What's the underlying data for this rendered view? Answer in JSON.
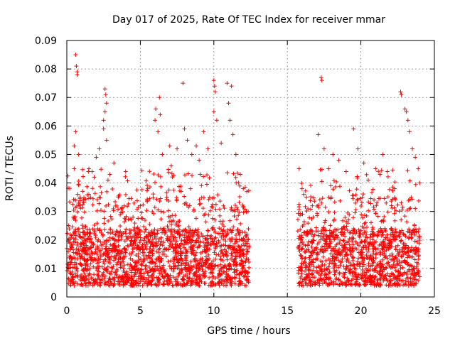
{
  "chart_data": {
    "type": "scatter",
    "title": "Day 017 of 2025, Rate Of TEC Index for receiver mmar",
    "xlabel": "GPS time / hours",
    "ylabel": "ROTI / TECUs",
    "xlim": [
      0,
      25
    ],
    "ylim": [
      0,
      0.09
    ],
    "xticks": [
      0,
      5,
      10,
      15,
      20,
      25
    ],
    "yticks": [
      0,
      0.01,
      0.02,
      0.03,
      0.04,
      0.05,
      0.06,
      0.07,
      0.08,
      0.09
    ],
    "xtick_labels": [
      "0",
      "5",
      "10",
      "15",
      "20",
      "25"
    ],
    "ytick_labels": [
      "0",
      "0.01",
      "0.02",
      "0.03",
      "0.04",
      "0.05",
      "0.06",
      "0.07",
      "0.08",
      "0.09"
    ],
    "grid": true,
    "marker": "+",
    "color": "#ff0000",
    "data_gap_hours": [
      12.4,
      15.7
    ],
    "series": [
      {
        "name": "ROTI",
        "points": [
          [
            0.3,
            0.012
          ],
          [
            0.5,
            0.053
          ],
          [
            0.6,
            0.085
          ],
          [
            0.65,
            0.081
          ],
          [
            0.7,
            0.079
          ],
          [
            0.7,
            0.078
          ],
          [
            0.6,
            0.058
          ],
          [
            0.8,
            0.05
          ],
          [
            0.5,
            0.045
          ],
          [
            0.9,
            0.035
          ],
          [
            1.2,
            0.022
          ],
          [
            1.5,
            0.036
          ],
          [
            2.0,
            0.049
          ],
          [
            2.2,
            0.052
          ],
          [
            2.5,
            0.059
          ],
          [
            2.6,
            0.073
          ],
          [
            2.65,
            0.071
          ],
          [
            2.7,
            0.068
          ],
          [
            2.6,
            0.065
          ],
          [
            2.5,
            0.062
          ],
          [
            2.7,
            0.055
          ],
          [
            2.8,
            0.041
          ],
          [
            3.2,
            0.047
          ],
          [
            3.5,
            0.035
          ],
          [
            4.0,
            0.044
          ],
          [
            4.5,
            0.028
          ],
          [
            5.0,
            0.032
          ],
          [
            5.5,
            0.038
          ],
          [
            6.0,
            0.062
          ],
          [
            6.05,
            0.066
          ],
          [
            6.2,
            0.058
          ],
          [
            6.3,
            0.07
          ],
          [
            6.35,
            0.064
          ],
          [
            6.5,
            0.05
          ],
          [
            6.8,
            0.035
          ],
          [
            7.0,
            0.053
          ],
          [
            7.1,
            0.046
          ],
          [
            7.5,
            0.052
          ],
          [
            7.9,
            0.075
          ],
          [
            8.0,
            0.059
          ],
          [
            8.2,
            0.055
          ],
          [
            8.5,
            0.05
          ],
          [
            8.8,
            0.053
          ],
          [
            9.0,
            0.048
          ],
          [
            9.3,
            0.058
          ],
          [
            9.6,
            0.052
          ],
          [
            10.0,
            0.076
          ],
          [
            10.05,
            0.074
          ],
          [
            10.1,
            0.072
          ],
          [
            10.0,
            0.065
          ],
          [
            10.2,
            0.062
          ],
          [
            10.5,
            0.054
          ],
          [
            10.9,
            0.075
          ],
          [
            11.0,
            0.068
          ],
          [
            11.2,
            0.074
          ],
          [
            11.1,
            0.062
          ],
          [
            11.3,
            0.057
          ],
          [
            11.5,
            0.05
          ],
          [
            11.8,
            0.043
          ],
          [
            12.0,
            0.038
          ],
          [
            12.2,
            0.03
          ],
          [
            15.8,
            0.045
          ],
          [
            16.0,
            0.038
          ],
          [
            16.3,
            0.035
          ],
          [
            16.7,
            0.032
          ],
          [
            17.1,
            0.057
          ],
          [
            17.3,
            0.077
          ],
          [
            17.35,
            0.076
          ],
          [
            17.5,
            0.052
          ],
          [
            17.8,
            0.045
          ],
          [
            18.1,
            0.05
          ],
          [
            18.5,
            0.048
          ],
          [
            19.0,
            0.044
          ],
          [
            19.5,
            0.059
          ],
          [
            19.8,
            0.052
          ],
          [
            20.2,
            0.047
          ],
          [
            20.5,
            0.041
          ],
          [
            21.0,
            0.045
          ],
          [
            21.3,
            0.043
          ],
          [
            21.5,
            0.05
          ],
          [
            21.8,
            0.044
          ],
          [
            22.3,
            0.038
          ],
          [
            22.7,
            0.072
          ],
          [
            22.75,
            0.071
          ],
          [
            23.0,
            0.066
          ],
          [
            23.1,
            0.065
          ],
          [
            23.2,
            0.062
          ],
          [
            23.3,
            0.058
          ],
          [
            23.5,
            0.052
          ],
          [
            23.7,
            0.049
          ],
          [
            23.9,
            0.045
          ],
          [
            24.0,
            0.04
          ],
          [
            23.8,
            0.01
          ]
        ]
      }
    ]
  }
}
